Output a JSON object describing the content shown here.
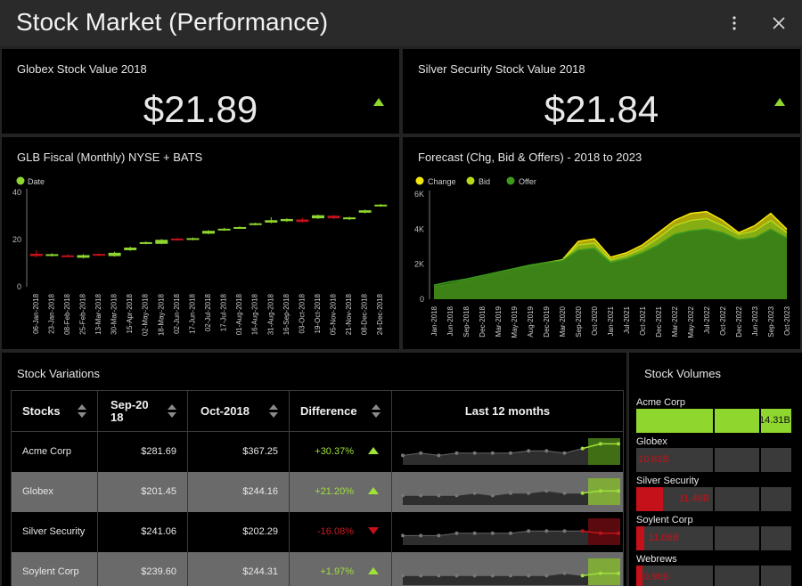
{
  "app": {
    "title": "Stock Market (Performance)",
    "menu_icon": "vertical-dots-icon",
    "close_icon": "close-icon"
  },
  "kpis": [
    {
      "title": "Globex Stock Value 2018",
      "value": "$21.89",
      "trend": "up"
    },
    {
      "title": "Silver Security Stock Value 2018",
      "value": "$21.84",
      "trend": "up"
    }
  ],
  "colors": {
    "up": "#8fd62f",
    "down": "#c4111a",
    "change": "#f5e60a",
    "bid": "#b5d81a",
    "offer": "#3d9a1e"
  },
  "chart_data": [
    {
      "type": "candlestick",
      "title": "GLB Fiscal (Monthly) NYSE + BATS",
      "legend": [
        "Date"
      ],
      "categories": [
        "06-Jan-2018",
        "23-Jan-2018",
        "08-Feb-2018",
        "25-Feb-2018",
        "13-Mar-2018",
        "30-Mar-2018",
        "15-Apr-2018",
        "02-May-2018",
        "18-May-2018",
        "02-Jun-2018",
        "17-Jun-2018",
        "02-Jul-2018",
        "17-Jul-2018",
        "01-Aug-2018",
        "16-Aug-2018",
        "31-Aug-2018",
        "16-Sep-2018",
        "03-Oct-2018",
        "19-Oct-2018",
        "05-Nov-2018",
        "21-Nov-2018",
        "08-Dec-2018",
        "24-Dec-2018"
      ],
      "ylim": [
        0,
        40
      ],
      "yticks": [
        0,
        20,
        40
      ],
      "candles": [
        {
          "o": 14,
          "c": 13,
          "h": 15.5,
          "l": 12.5
        },
        {
          "o": 13.2,
          "c": 13.8,
          "h": 14.2,
          "l": 12.8
        },
        {
          "o": 13.3,
          "c": 12.9,
          "h": 13.8,
          "l": 12.6
        },
        {
          "o": 12.3,
          "c": 13.4,
          "h": 13.8,
          "l": 12.0
        },
        {
          "o": 13.9,
          "c": 13.3,
          "h": 14.2,
          "l": 13.0
        },
        {
          "o": 13.0,
          "c": 14.4,
          "h": 14.8,
          "l": 12.8
        },
        {
          "o": 15.5,
          "c": 16.6,
          "h": 17.0,
          "l": 15.2
        },
        {
          "o": 18.3,
          "c": 18.9,
          "h": 19.2,
          "l": 18.0
        },
        {
          "o": 18.2,
          "c": 19.9,
          "h": 20.2,
          "l": 18.0
        },
        {
          "o": 20.4,
          "c": 19.9,
          "h": 20.8,
          "l": 19.6
        },
        {
          "o": 20.0,
          "c": 20.6,
          "h": 20.9,
          "l": 19.7
        },
        {
          "o": 22.5,
          "c": 23.7,
          "h": 24.0,
          "l": 22.2
        },
        {
          "o": 24.0,
          "c": 24.6,
          "h": 25.0,
          "l": 23.7
        },
        {
          "o": 24.8,
          "c": 25.3,
          "h": 25.6,
          "l": 24.5
        },
        {
          "o": 26.3,
          "c": 26.9,
          "h": 27.2,
          "l": 26.0
        },
        {
          "o": 27.2,
          "c": 28.2,
          "h": 29.5,
          "l": 26.9
        },
        {
          "o": 27.8,
          "c": 28.7,
          "h": 29.0,
          "l": 27.5
        },
        {
          "o": 28.5,
          "c": 27.5,
          "h": 29.2,
          "l": 27.2
        },
        {
          "o": 29.0,
          "c": 30.3,
          "h": 30.6,
          "l": 28.7
        },
        {
          "o": 30.1,
          "c": 29.0,
          "h": 30.4,
          "l": 28.7
        },
        {
          "o": 28.6,
          "c": 29.4,
          "h": 29.7,
          "l": 28.3
        },
        {
          "o": 31.4,
          "c": 32.4,
          "h": 32.7,
          "l": 31.1
        },
        {
          "o": 34.2,
          "c": 34.8,
          "h": 35.1,
          "l": 33.9
        }
      ]
    },
    {
      "type": "area",
      "title": "Forecast (Chg, Bid & Offers) - 2018 to 2023",
      "categories": [
        "Jan-2018",
        "Jun-2018",
        "Sep-2018",
        "Dec-2018",
        "Mar-2019",
        "May-2019",
        "Aug-2019",
        "Dec-2019",
        "Mar-2020",
        "Sep-2020",
        "Oct-2020",
        "Jan-2021",
        "Jul-2021",
        "Oct-2021",
        "Dec-2021",
        "Mar-2022",
        "May-2022",
        "Jul-2022",
        "Oct-2022",
        "Dec-2022",
        "Jun-2023",
        "Sep-2023",
        "Oct-2023"
      ],
      "ylim": [
        0,
        6000
      ],
      "yticks": [
        "0",
        "2K",
        "4K",
        "6K"
      ],
      "series": [
        {
          "name": "Change",
          "values": [
            600,
            750,
            950,
            1150,
            1350,
            1550,
            1850,
            2050,
            2250,
            3300,
            3450,
            2400,
            2650,
            3100,
            3800,
            4500,
            4900,
            5000,
            4500,
            3800,
            4200,
            4900,
            4000
          ]
        },
        {
          "name": "Bid",
          "values": [
            700,
            850,
            1050,
            1250,
            1450,
            1650,
            1900,
            2100,
            2250,
            3100,
            3200,
            2250,
            2500,
            2900,
            3500,
            4200,
            4500,
            4600,
            4200,
            3700,
            3900,
            4500,
            3800
          ]
        },
        {
          "name": "Offer",
          "values": [
            800,
            1000,
            1150,
            1350,
            1550,
            1750,
            1950,
            2100,
            2200,
            2800,
            2900,
            2100,
            2300,
            2650,
            3100,
            3700,
            3900,
            4000,
            3800,
            3400,
            3500,
            4000,
            3500
          ]
        }
      ]
    }
  ],
  "variations": {
    "title": "Stock Variations",
    "columns": [
      "Stocks",
      "Sep-20\n18",
      "Oct-2018",
      "Difference",
      "Last 12 months"
    ],
    "rows": [
      {
        "name": "Acme Corp",
        "sep": "$281.69",
        "oct": "$367.25",
        "diff": "+30.37%",
        "trend": "up",
        "spark": [
          3,
          4,
          3,
          4,
          4,
          4,
          4,
          5,
          5,
          4,
          6,
          8,
          8
        ]
      },
      {
        "name": "Globex",
        "sep": "$201.45",
        "oct": "$244.16",
        "diff": "+21.20%",
        "trend": "up",
        "spark": [
          3,
          3,
          3,
          3,
          4,
          3,
          4,
          4,
          5,
          4,
          4,
          5,
          5
        ]
      },
      {
        "name": "Silver Security",
        "sep": "$241.06",
        "oct": "$202.29",
        "diff": "-16.08%",
        "trend": "down",
        "spark": [
          3,
          3,
          3,
          4,
          4,
          4,
          4,
          5,
          5,
          5,
          5,
          4,
          4
        ]
      },
      {
        "name": "Soylent Corp",
        "sep": "$239.60",
        "oct": "$244.31",
        "diff": "+1.97%",
        "trend": "up",
        "spark": [
          3,
          3,
          3,
          3,
          3,
          3,
          3,
          3,
          3,
          4,
          3,
          4,
          4
        ]
      }
    ]
  },
  "volumes": {
    "title": "Stock Volumes",
    "items": [
      {
        "name": "Acme Corp",
        "value": "14.31B",
        "fraction": 1.0,
        "color": "#8fd62f"
      },
      {
        "name": "Globex",
        "value": "10.83B",
        "fraction": 0.0,
        "color": "#c4111a"
      },
      {
        "name": "Silver Security",
        "value": "11.48B",
        "fraction": 0.17,
        "color": "#c4111a"
      },
      {
        "name": "Soylent Corp",
        "value": "11.08B",
        "fraction": 0.05,
        "color": "#c4111a"
      },
      {
        "name": "Webrews",
        "value": "10.98B",
        "fraction": 0.04,
        "color": "#c4111a"
      }
    ]
  }
}
